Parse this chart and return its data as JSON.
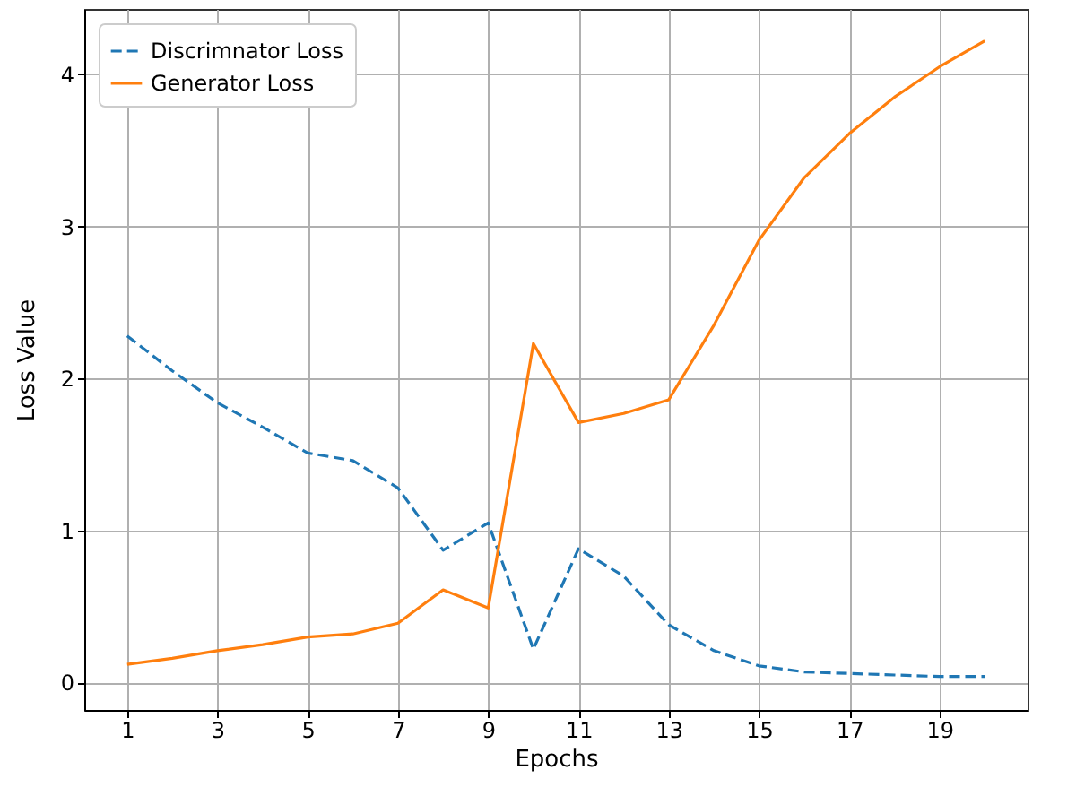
{
  "chart_data": {
    "type": "line",
    "xlabel": "Epochs",
    "ylabel": "Loss Value",
    "x": [
      1,
      2,
      3,
      4,
      5,
      6,
      7,
      8,
      9,
      10,
      11,
      12,
      13,
      14,
      15,
      16,
      17,
      18,
      19,
      20
    ],
    "series": [
      {
        "name": "Discrimnator Loss",
        "color": "#1f77b4",
        "line_style": "dashed",
        "values": [
          2.28,
          2.05,
          1.84,
          1.68,
          1.51,
          1.46,
          1.28,
          0.87,
          1.05,
          0.22,
          0.88,
          0.7,
          0.38,
          0.21,
          0.11,
          0.07,
          0.06,
          0.05,
          0.04,
          0.04
        ]
      },
      {
        "name": "Generator Loss",
        "color": "#ff7f0e",
        "line_style": "solid",
        "values": [
          0.12,
          0.16,
          0.21,
          0.25,
          0.3,
          0.32,
          0.39,
          0.61,
          0.49,
          2.23,
          1.71,
          1.77,
          1.86,
          2.35,
          2.91,
          3.32,
          3.61,
          3.85,
          4.05,
          4.22
        ]
      }
    ],
    "xlim": [
      0.05,
      20.95
    ],
    "xticks": [
      1,
      3,
      5,
      7,
      9,
      11,
      13,
      15,
      17,
      19
    ],
    "ylim": [
      -0.18,
      4.43
    ],
    "yticks": [
      0,
      1,
      2,
      3,
      4
    ],
    "grid": true,
    "legend": "top left",
    "marker": "none"
  }
}
